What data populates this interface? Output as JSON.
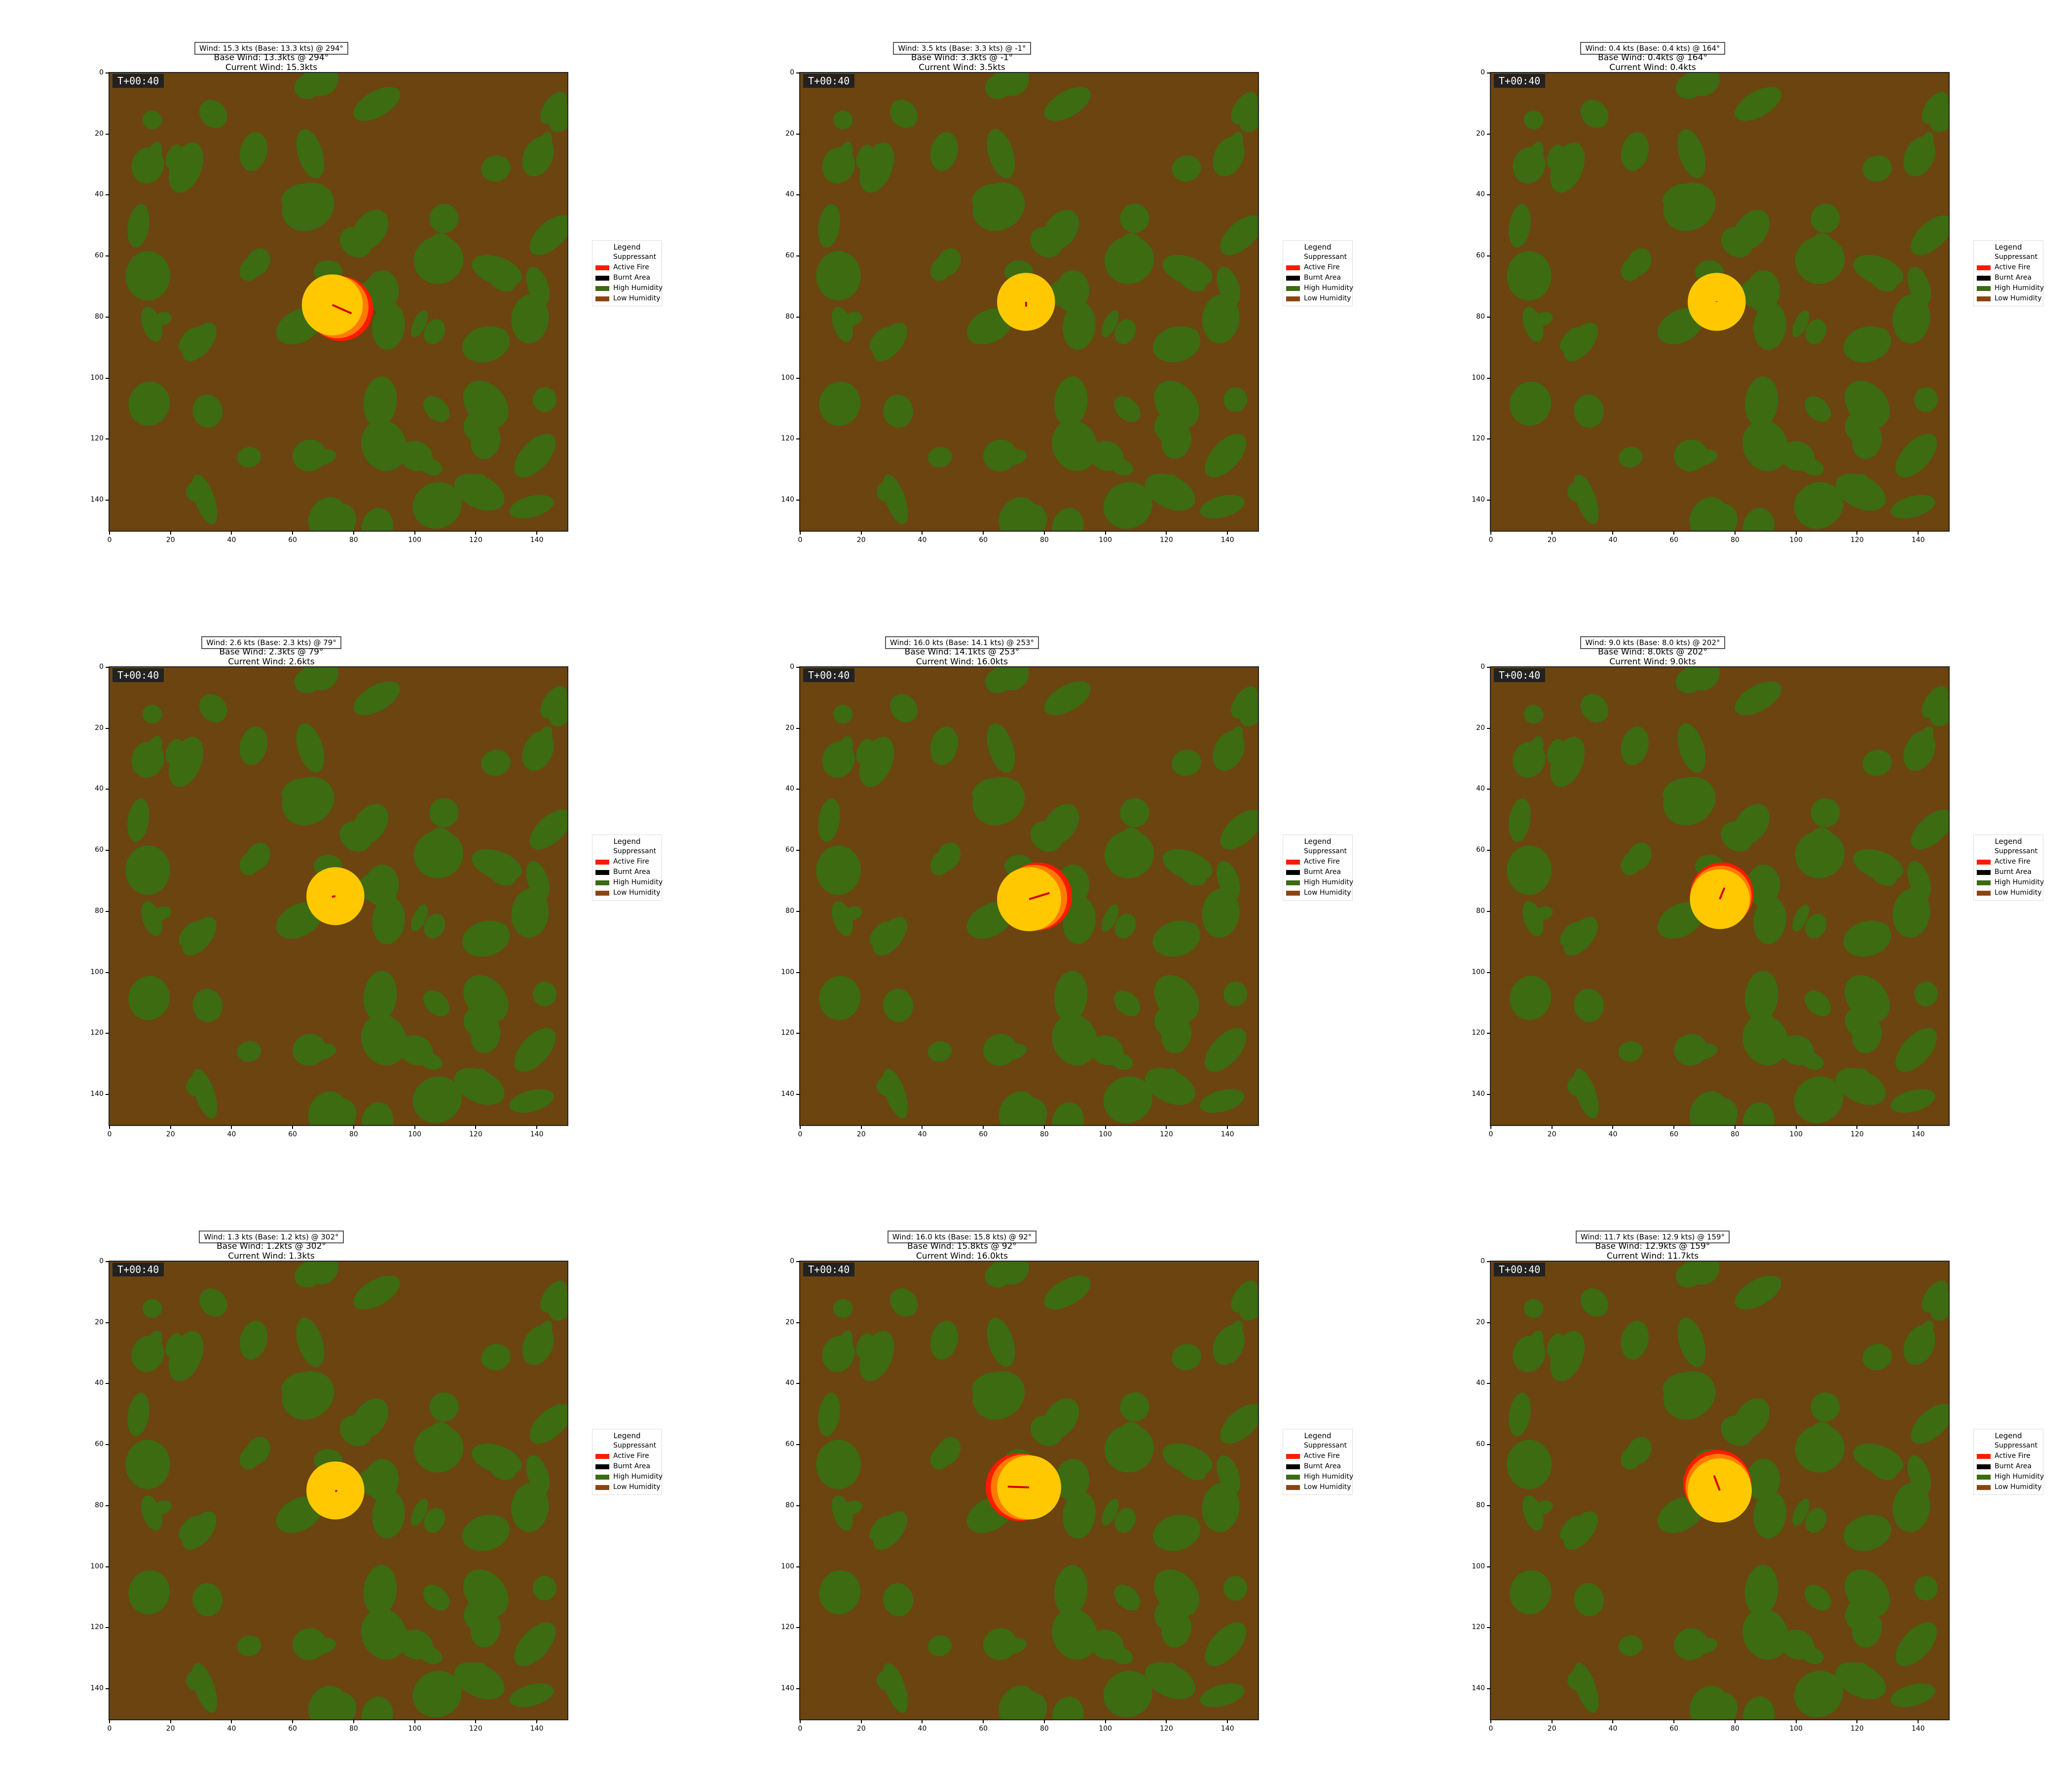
{
  "colors": {
    "background": "#6b4410",
    "high_humidity": "#3c6b12",
    "suppressant": "#ffffff",
    "active_fire": "#ff1a00",
    "burnt_area": "#000000",
    "low_humidity": "#8b4513",
    "fire_core": "#ffc800",
    "fire_edge": "#ff7a00",
    "wind_arrow": "#d40000"
  },
  "legend": {
    "title": "Legend",
    "items": [
      {
        "label": "Suppressant",
        "color": "#ffffff"
      },
      {
        "label": "Active Fire",
        "color": "#ff1a00"
      },
      {
        "label": "Burnt Area",
        "color": "#000000"
      },
      {
        "label": "High Humidity",
        "color": "#3c6b12"
      },
      {
        "label": "Low Humidity",
        "color": "#8b4513"
      }
    ]
  },
  "axes": {
    "x_ticks": [
      "0",
      "20",
      "40",
      "60",
      "80",
      "100",
      "120",
      "140"
    ],
    "y_ticks": [
      "0",
      "20",
      "40",
      "60",
      "80",
      "100",
      "120",
      "140"
    ],
    "xlim": [
      0,
      150
    ],
    "ylim": [
      150,
      0
    ]
  },
  "chart_data": [
    {
      "type": "heatmap",
      "wind_box": "Wind: 15.3 kts (Base: 13.3 kts)  @ 294°",
      "title_1": "Base Wind: 13.3kts @ 294°",
      "title_2": "Current Wind: 15.3kts",
      "time": "T+00:40",
      "fire_center": [
        73,
        76
      ],
      "fire_radius": 10,
      "wind_dir_deg": 294,
      "wind_kts": 15.3
    },
    {
      "type": "heatmap",
      "wind_box": "Wind: 3.5 kts (Base: 3.3 kts)  @ -1°",
      "title_1": "Base Wind: 3.3kts @ -1°",
      "title_2": "Current Wind: 3.5kts",
      "time": "T+00:40",
      "fire_center": [
        74,
        75
      ],
      "fire_radius": 9.5,
      "wind_dir_deg": -1,
      "wind_kts": 3.5
    },
    {
      "type": "heatmap",
      "wind_box": "Wind: 0.4 kts (Base: 0.4 kts)  @ 164°",
      "title_1": "Base Wind: 0.4kts @ 164°",
      "title_2": "Current Wind: 0.4kts",
      "time": "T+00:40",
      "fire_center": [
        74,
        75
      ],
      "fire_radius": 9.5,
      "wind_dir_deg": 164,
      "wind_kts": 0.4
    },
    {
      "type": "heatmap",
      "wind_box": "Wind: 2.6 kts (Base: 2.3 kts)  @ 79°",
      "title_1": "Base Wind: 2.3kts @ 79°",
      "title_2": "Current Wind: 2.6kts",
      "time": "T+00:40",
      "fire_center": [
        74,
        75
      ],
      "fire_radius": 9.5,
      "wind_dir_deg": 79,
      "wind_kts": 2.6
    },
    {
      "type": "heatmap",
      "wind_box": "Wind: 16.0 kts (Base: 14.1 kts)  @ 253°",
      "title_1": "Base Wind: 14.1kts @ 253°",
      "title_2": "Current Wind: 16.0kts",
      "time": "T+00:40",
      "fire_center": [
        75,
        76
      ],
      "fire_radius": 10.5,
      "wind_dir_deg": 253,
      "wind_kts": 16.0
    },
    {
      "type": "heatmap",
      "wind_box": "Wind: 9.0 kts (Base: 8.0 kts)  @ 202°",
      "title_1": "Base Wind: 8.0kts @ 202°",
      "title_2": "Current Wind: 9.0kts",
      "time": "T+00:40",
      "fire_center": [
        75,
        76
      ],
      "fire_radius": 9.8,
      "wind_dir_deg": 202,
      "wind_kts": 9.0
    },
    {
      "type": "heatmap",
      "wind_box": "Wind: 1.3 kts (Base: 1.2 kts)  @ 302°",
      "title_1": "Base Wind: 1.2kts @ 302°",
      "title_2": "Current Wind: 1.3kts",
      "time": "T+00:40",
      "fire_center": [
        74,
        75
      ],
      "fire_radius": 9.5,
      "wind_dir_deg": 302,
      "wind_kts": 1.3
    },
    {
      "type": "heatmap",
      "wind_box": "Wind: 16.0 kts (Base: 15.8 kts)  @ 92°",
      "title_1": "Base Wind: 15.8kts @ 92°",
      "title_2": "Current Wind: 16.0kts",
      "time": "T+00:40",
      "fire_center": [
        75,
        74
      ],
      "fire_radius": 10.5,
      "wind_dir_deg": 92,
      "wind_kts": 16.0
    },
    {
      "type": "heatmap",
      "wind_box": "Wind: 11.7 kts (Base: 12.9 kts)  @ 159°",
      "title_1": "Base Wind: 12.9kts @ 159°",
      "title_2": "Current Wind: 11.7kts",
      "time": "T+00:40",
      "fire_center": [
        75,
        75
      ],
      "fire_radius": 10.5,
      "wind_dir_deg": 159,
      "wind_kts": 11.7
    }
  ]
}
